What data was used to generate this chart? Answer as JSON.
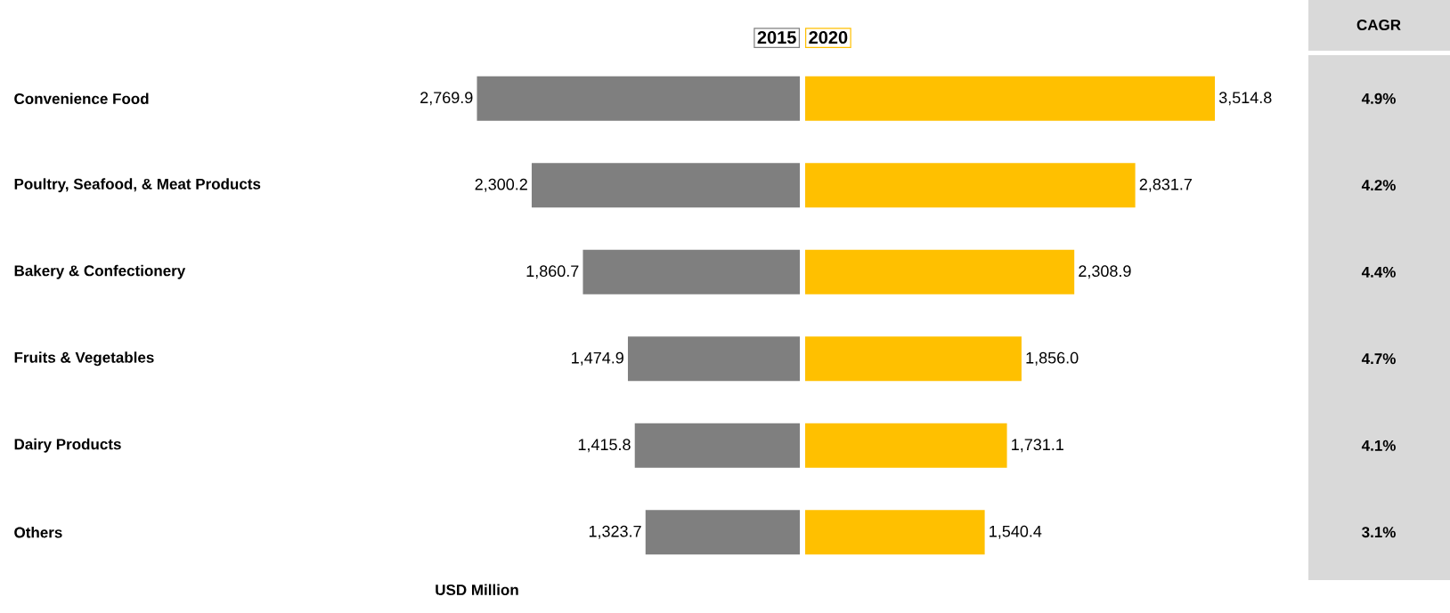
{
  "chart_data": [
    {
      "type": "bar",
      "orientation": "horizontal",
      "xlabel": "USD Million",
      "categories": [
        "Convenience Food",
        "Poultry, Seafood, & Meat Products",
        "Bakery & Confectionery",
        "Fruits & Vegetables",
        "Dairy Products",
        "Others"
      ],
      "tick_labels": "y",
      "legend": "top right",
      "series": [
        {
          "name": "2015",
          "color": "#7f7f7f",
          "values": [
            2769.9,
            2300.2,
            1860.7,
            1474.9,
            1415.8,
            1323.7
          ],
          "value_labels": [
            "2,769.9",
            "2,300.2",
            "1,860.7",
            "1,474.9",
            "1,415.8",
            "1,323.7"
          ]
        }
      ]
    },
    {
      "type": "bar",
      "orientation": "horizontal",
      "tick_labels": false,
      "legend": "top left",
      "series": [
        {
          "name": "2020",
          "color": "#ffc000",
          "values": [
            3514.8,
            2831.7,
            2308.9,
            1856.0,
            1731.1,
            1540.4
          ],
          "value_labels": [
            "3,514.8",
            "2,831.7",
            "2,308.9",
            "1,856.0",
            "1,731.1",
            "1,540.4"
          ]
        }
      ],
      "annotations": [
        "CAGR",
        "4.9%",
        "4.2%",
        "4.4%",
        "4.7%",
        "4.1%",
        "3.1%"
      ]
    }
  ]
}
